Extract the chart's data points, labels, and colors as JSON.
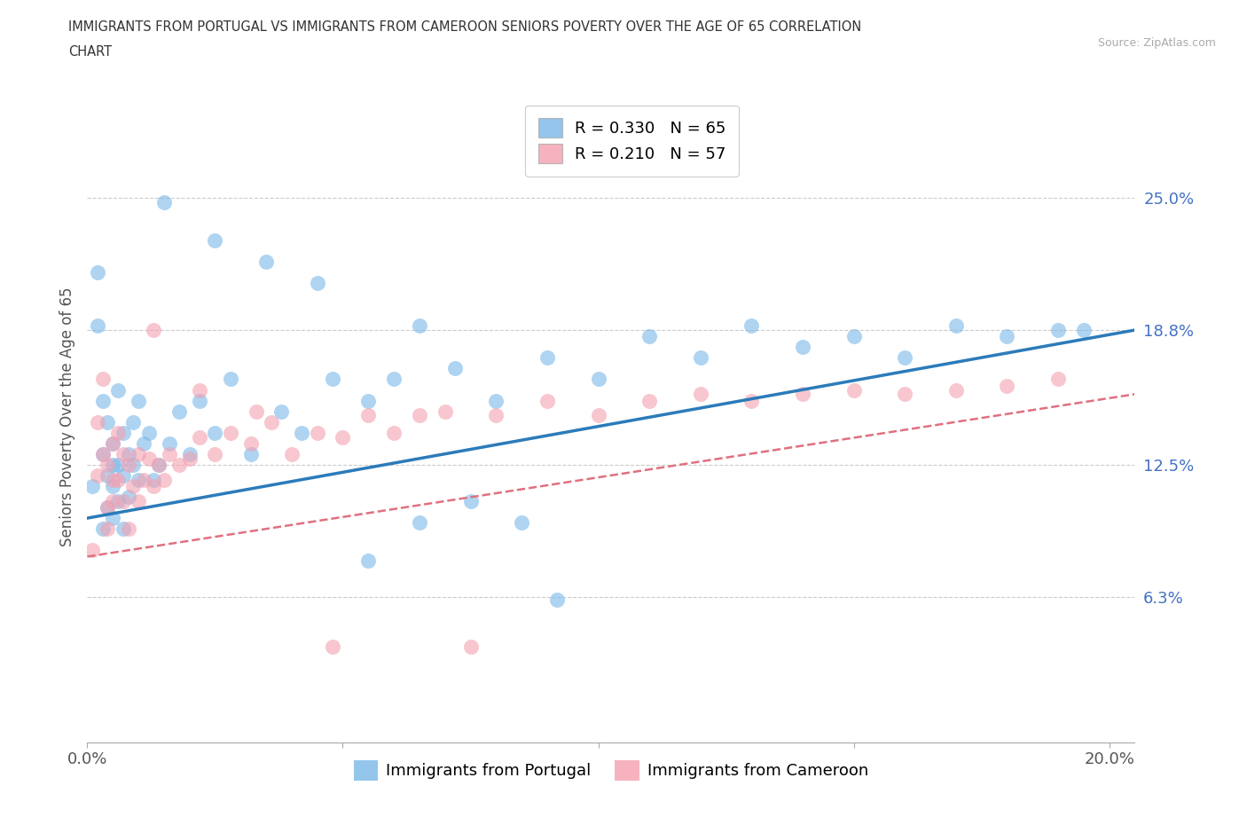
{
  "title_line1": "IMMIGRANTS FROM PORTUGAL VS IMMIGRANTS FROM CAMEROON SENIORS POVERTY OVER THE AGE OF 65 CORRELATION",
  "title_line2": "CHART",
  "source": "Source: ZipAtlas.com",
  "ylabel": "Seniors Poverty Over the Age of 65",
  "xlim": [
    0.0,
    0.205
  ],
  "ylim": [
    -0.005,
    0.3
  ],
  "xticks": [
    0.0,
    0.05,
    0.1,
    0.15,
    0.2
  ],
  "xticklabels": [
    "0.0%",
    "",
    "",
    "",
    "20.0%"
  ],
  "ytick_positions": [
    0.063,
    0.125,
    0.188,
    0.25
  ],
  "ytick_labels": [
    "6.3%",
    "12.5%",
    "18.8%",
    "25.0%"
  ],
  "legend_r1": "R = 0.330",
  "legend_n1": "N = 65",
  "legend_r2": "R = 0.210",
  "legend_n2": "N = 57",
  "color_portugal": "#7ab8e8",
  "color_cameroon": "#f4a0b0",
  "color_portugal_line": "#2b7bba",
  "color_cameroon_line": "#e07080",
  "color_ytick_label": "#4472c4",
  "background_color": "#ffffff",
  "portugal_x": [
    0.001,
    0.002,
    0.002,
    0.003,
    0.003,
    0.003,
    0.004,
    0.004,
    0.004,
    0.005,
    0.005,
    0.005,
    0.005,
    0.006,
    0.006,
    0.006,
    0.007,
    0.007,
    0.007,
    0.008,
    0.008,
    0.009,
    0.009,
    0.01,
    0.01,
    0.011,
    0.012,
    0.013,
    0.014,
    0.016,
    0.018,
    0.02,
    0.022,
    0.025,
    0.028,
    0.032,
    0.038,
    0.042,
    0.048,
    0.055,
    0.06,
    0.065,
    0.072,
    0.08,
    0.09,
    0.1,
    0.11,
    0.12,
    0.13,
    0.14,
    0.15,
    0.16,
    0.17,
    0.18,
    0.19,
    0.195,
    0.015,
    0.025,
    0.035,
    0.045,
    0.055,
    0.065,
    0.075,
    0.085,
    0.092
  ],
  "portugal_y": [
    0.115,
    0.215,
    0.19,
    0.13,
    0.155,
    0.095,
    0.145,
    0.12,
    0.105,
    0.135,
    0.125,
    0.115,
    0.1,
    0.16,
    0.125,
    0.108,
    0.14,
    0.12,
    0.095,
    0.13,
    0.11,
    0.145,
    0.125,
    0.155,
    0.118,
    0.135,
    0.14,
    0.118,
    0.125,
    0.135,
    0.15,
    0.13,
    0.155,
    0.14,
    0.165,
    0.13,
    0.15,
    0.14,
    0.165,
    0.155,
    0.165,
    0.19,
    0.17,
    0.155,
    0.175,
    0.165,
    0.185,
    0.175,
    0.19,
    0.18,
    0.185,
    0.175,
    0.19,
    0.185,
    0.188,
    0.188,
    0.248,
    0.23,
    0.22,
    0.21,
    0.08,
    0.098,
    0.108,
    0.098,
    0.062
  ],
  "cameroon_x": [
    0.001,
    0.002,
    0.002,
    0.003,
    0.003,
    0.004,
    0.004,
    0.004,
    0.005,
    0.005,
    0.005,
    0.006,
    0.006,
    0.007,
    0.007,
    0.008,
    0.008,
    0.009,
    0.01,
    0.01,
    0.011,
    0.012,
    0.013,
    0.014,
    0.015,
    0.016,
    0.018,
    0.02,
    0.022,
    0.025,
    0.028,
    0.032,
    0.036,
    0.04,
    0.045,
    0.05,
    0.055,
    0.06,
    0.065,
    0.07,
    0.08,
    0.09,
    0.1,
    0.11,
    0.12,
    0.13,
    0.14,
    0.15,
    0.16,
    0.17,
    0.18,
    0.19,
    0.013,
    0.022,
    0.033,
    0.048,
    0.075
  ],
  "cameroon_y": [
    0.085,
    0.145,
    0.12,
    0.165,
    0.13,
    0.125,
    0.105,
    0.095,
    0.135,
    0.118,
    0.108,
    0.14,
    0.118,
    0.13,
    0.108,
    0.125,
    0.095,
    0.115,
    0.13,
    0.108,
    0.118,
    0.128,
    0.115,
    0.125,
    0.118,
    0.13,
    0.125,
    0.128,
    0.138,
    0.13,
    0.14,
    0.135,
    0.145,
    0.13,
    0.14,
    0.138,
    0.148,
    0.14,
    0.148,
    0.15,
    0.148,
    0.155,
    0.148,
    0.155,
    0.158,
    0.155,
    0.158,
    0.16,
    0.158,
    0.16,
    0.162,
    0.165,
    0.188,
    0.16,
    0.15,
    0.04,
    0.04
  ]
}
